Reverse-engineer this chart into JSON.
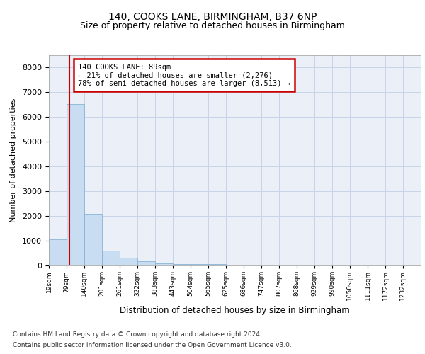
{
  "title1": "140, COOKS LANE, BIRMINGHAM, B37 6NP",
  "title2": "Size of property relative to detached houses in Birmingham",
  "xlabel": "Distribution of detached houses by size in Birmingham",
  "ylabel": "Number of detached properties",
  "footnote1": "Contains HM Land Registry data © Crown copyright and database right 2024.",
  "footnote2": "Contains public sector information licensed under the Open Government Licence v3.0.",
  "annotation_line1": "140 COOKS LANE: 89sqm",
  "annotation_line2": "← 21% of detached houses are smaller (2,276)",
  "annotation_line3": "78% of semi-detached houses are larger (8,513) →",
  "property_size": 89,
  "bar_left_edges": [
    19,
    79,
    140,
    201,
    261,
    322,
    383,
    443,
    504,
    565,
    625,
    686,
    747,
    807,
    868,
    929,
    990,
    1050,
    1111,
    1172
  ],
  "bar_widths": [
    60,
    61,
    61,
    60,
    61,
    61,
    60,
    61,
    61,
    60,
    61,
    61,
    60,
    61,
    61,
    61,
    60,
    61,
    61,
    60
  ],
  "bar_heights": [
    1050,
    6500,
    2100,
    600,
    310,
    160,
    100,
    70,
    50,
    50,
    0,
    0,
    0,
    0,
    0,
    0,
    0,
    0,
    0,
    0
  ],
  "bar_color": "#c9ddf2",
  "bar_edge_color": "#8ab4d8",
  "grid_color": "#c8d4e8",
  "background_color": "#eaeff8",
  "vline_x": 89,
  "vline_color": "#cc0000",
  "annotation_box_color": "#cc0000",
  "ylim": [
    0,
    8500
  ],
  "yticks": [
    0,
    1000,
    2000,
    3000,
    4000,
    5000,
    6000,
    7000,
    8000
  ],
  "tick_labels": [
    "19sqm",
    "79sqm",
    "140sqm",
    "201sqm",
    "261sqm",
    "322sqm",
    "383sqm",
    "443sqm",
    "504sqm",
    "565sqm",
    "625sqm",
    "686sqm",
    "747sqm",
    "807sqm",
    "868sqm",
    "929sqm",
    "990sqm",
    "1050sqm",
    "1111sqm",
    "1172sqm",
    "1232sqm"
  ]
}
